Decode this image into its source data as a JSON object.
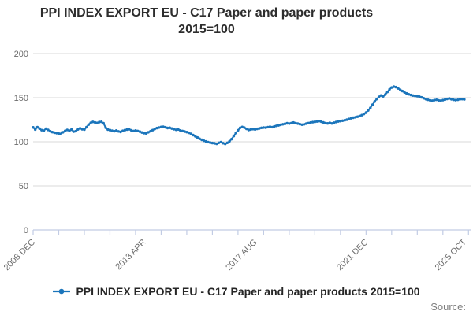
{
  "header": {
    "title_line1": "PPI INDEX EXPORT EU - C17 Paper and paper products",
    "title_line2": "2015=100"
  },
  "legend": {
    "label": "PPI INDEX EXPORT EU - C17 Paper and paper products 2015=100"
  },
  "footer": {
    "source_label": "Source:"
  },
  "colors": {
    "series_blue": "#1b75bb",
    "grid_gray": "#d9d9d9",
    "axis_blue": "#c2cce4",
    "tick_text_gray": "#6b6b6b"
  },
  "chart_data": {
    "type": "line",
    "title": "PPI INDEX EXPORT EU - C17 Paper and paper products 2015=100",
    "x_start": "2008 DEC",
    "x_end": "2025 OCT",
    "x_unit": "month",
    "ylim": [
      0,
      200
    ],
    "yticks": [
      0,
      50,
      100,
      150,
      200
    ],
    "xtick_labels": [
      {
        "month_index": 0,
        "label": "2008 DEC"
      },
      {
        "month_index": 52,
        "label": "2013 APR"
      },
      {
        "month_index": 104,
        "label": "2017 AUG"
      },
      {
        "month_index": 156,
        "label": "2021 DEC"
      },
      {
        "month_index": 202,
        "label": "2025 OCT"
      }
    ],
    "minor_tick_every_months": 12,
    "x_axis_total_months": 205,
    "grid": "horizontal",
    "legend_position": "bottom",
    "series": [
      {
        "name": "PPI INDEX EXPORT EU - C17 Paper and paper products 2015=100",
        "color": "#1b75bb",
        "values": [
          116.3,
          113.8,
          116.5,
          115.0,
          113.2,
          112.5,
          114.8,
          113.5,
          112.0,
          111.0,
          110.3,
          109.8,
          109.3,
          109.0,
          110.8,
          112.3,
          113.5,
          112.5,
          113.8,
          111.5,
          112.0,
          114.0,
          115.3,
          114.2,
          113.8,
          116.5,
          119.5,
          121.5,
          122.5,
          122.0,
          121.3,
          122.3,
          122.6,
          121.0,
          116.0,
          113.8,
          113.2,
          112.5,
          112.0,
          112.8,
          111.8,
          111.2,
          112.4,
          113.2,
          113.8,
          114.2,
          113.0,
          112.2,
          112.8,
          112.2,
          111.5,
          110.5,
          109.8,
          109.4,
          110.8,
          112.0,
          113.2,
          114.5,
          115.5,
          116.2,
          116.8,
          117.0,
          116.4,
          115.6,
          115.9,
          115.0,
          114.3,
          113.6,
          113.9,
          112.8,
          112.2,
          111.6,
          111.0,
          110.2,
          109.0,
          107.6,
          106.2,
          104.8,
          103.4,
          102.2,
          101.2,
          100.4,
          99.6,
          99.0,
          98.6,
          98.2,
          97.7,
          98.8,
          99.6,
          98.4,
          97.6,
          98.8,
          100.5,
          103.0,
          106.5,
          110.0,
          113.0,
          115.8,
          116.8,
          116.0,
          114.6,
          113.4,
          113.8,
          114.4,
          113.9,
          114.6,
          115.2,
          115.8,
          116.2,
          116.0,
          116.6,
          117.0,
          116.6,
          117.4,
          118.0,
          118.6,
          119.2,
          119.8,
          120.4,
          121.0,
          120.6,
          121.2,
          121.8,
          121.2,
          120.6,
          120.0,
          119.4,
          119.8,
          120.6,
          121.2,
          121.8,
          122.2,
          122.6,
          123.0,
          123.4,
          122.8,
          122.0,
          121.2,
          120.8,
          121.4,
          120.8,
          121.6,
          122.4,
          123.0,
          123.4,
          123.8,
          124.4,
          125.0,
          125.8,
          126.6,
          127.2,
          127.8,
          128.4,
          129.2,
          130.2,
          131.4,
          133.0,
          135.5,
          138.5,
          142.0,
          145.5,
          148.5,
          151.0,
          152.5,
          151.5,
          153.5,
          156.5,
          159.5,
          161.5,
          162.5,
          162.0,
          160.5,
          159.0,
          157.5,
          156.0,
          154.8,
          153.8,
          153.0,
          152.4,
          152.0,
          151.8,
          151.2,
          150.4,
          149.4,
          148.4,
          147.6,
          147.0,
          146.6,
          147.2,
          147.6,
          147.0,
          146.6,
          147.2,
          147.8,
          148.6,
          149.2,
          148.2,
          147.6,
          147.2,
          147.6,
          148.2,
          148.4,
          148.0
        ]
      }
    ]
  }
}
